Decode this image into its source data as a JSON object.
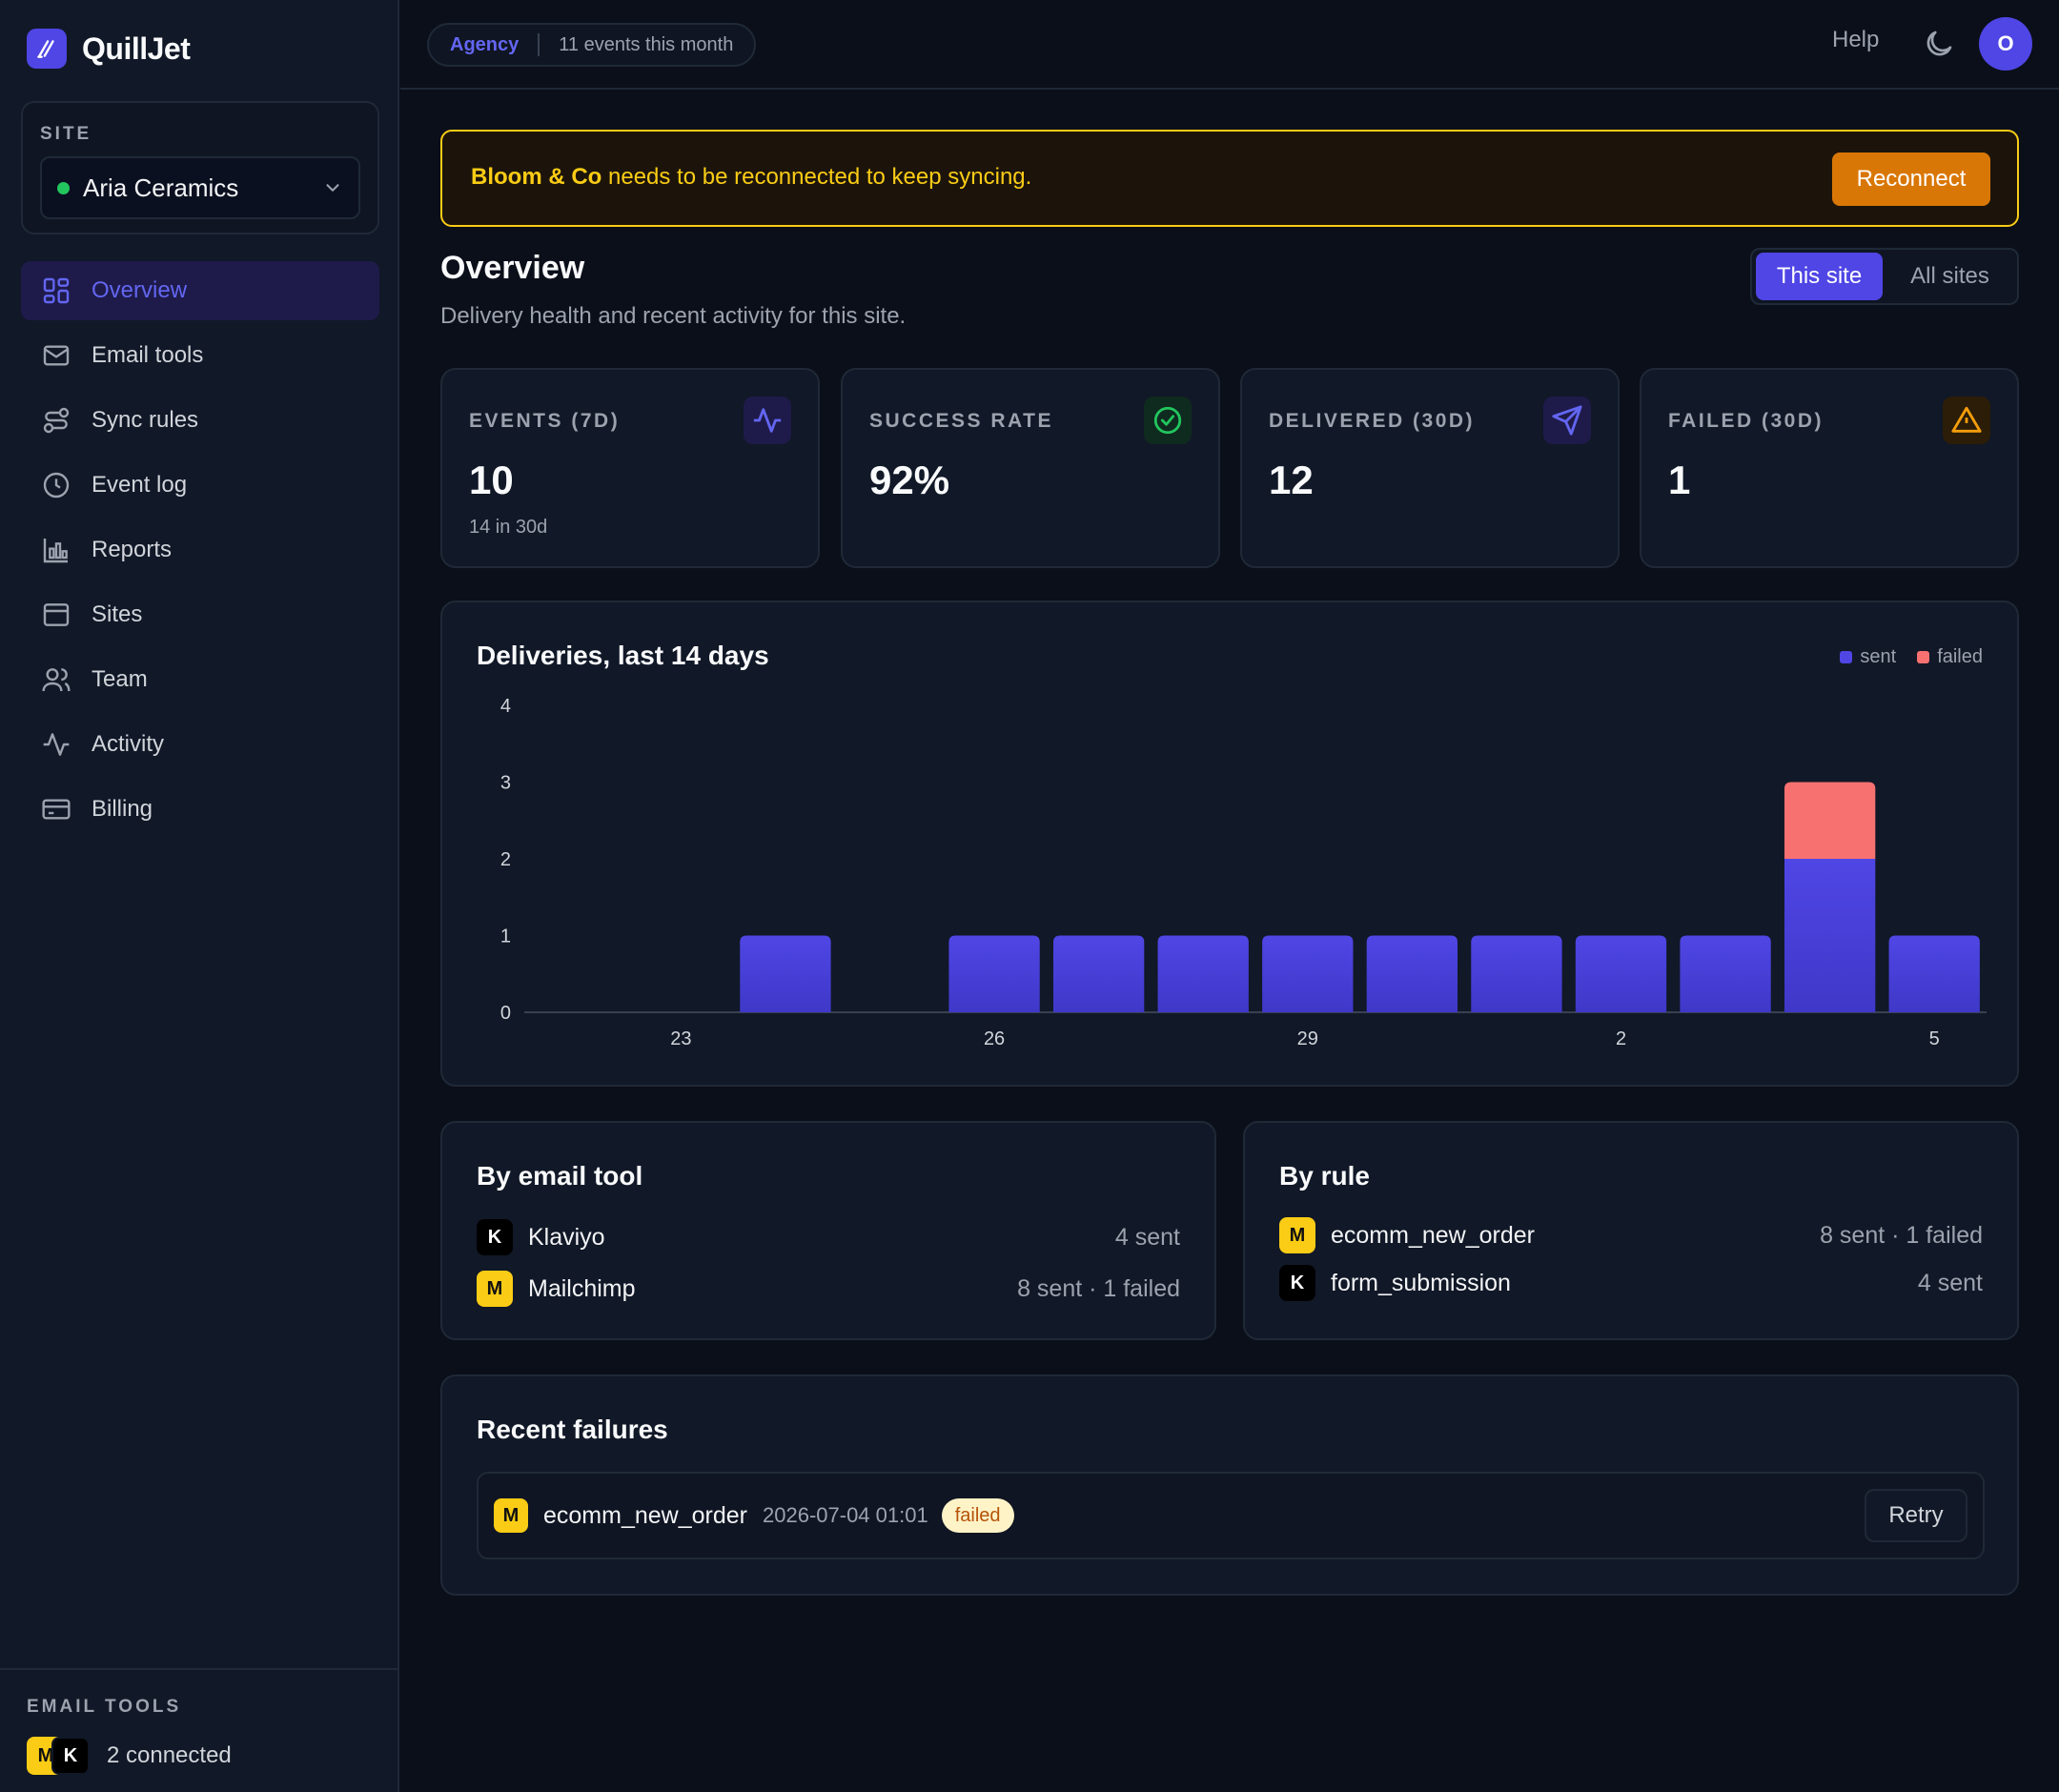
{
  "brand": {
    "name": "QuillJet"
  },
  "sidebar": {
    "site_label": "SITE",
    "site_name": "Aria Ceramics",
    "items": [
      {
        "label": "Overview",
        "icon": "grid-icon",
        "active": true
      },
      {
        "label": "Email tools",
        "icon": "mail-icon"
      },
      {
        "label": "Sync rules",
        "icon": "route-icon"
      },
      {
        "label": "Event log",
        "icon": "clock-icon"
      },
      {
        "label": "Reports",
        "icon": "bar-chart-icon"
      },
      {
        "label": "Sites",
        "icon": "browser-icon"
      },
      {
        "label": "Team",
        "icon": "users-icon"
      },
      {
        "label": "Activity",
        "icon": "pulse-icon"
      },
      {
        "label": "Billing",
        "icon": "credit-card-icon"
      }
    ],
    "footer": {
      "label": "EMAIL TOOLS",
      "badges": [
        "M",
        "K"
      ],
      "text": "2 connected"
    }
  },
  "topbar": {
    "plan": "Agency",
    "events": "11 events this month",
    "help": "Help",
    "avatar": "O"
  },
  "banner": {
    "account": "Bloom & Co",
    "message": " needs to be reconnected to keep syncing.",
    "button": "Reconnect"
  },
  "overview": {
    "title": "Overview",
    "subtitle": "Delivery health and recent activity for this site.",
    "toggle": {
      "on": "This site",
      "off": "All sites"
    }
  },
  "stats": [
    {
      "label": "EVENTS (7D)",
      "value": "10",
      "sub": "14 in 30d",
      "icon": "pulse-icon"
    },
    {
      "label": "SUCCESS RATE",
      "value": "92%",
      "sub": "",
      "icon": "check-circle-icon"
    },
    {
      "label": "DELIVERED (30D)",
      "value": "12",
      "sub": "",
      "icon": "send-icon"
    },
    {
      "label": "FAILED (30D)",
      "value": "1",
      "sub": "",
      "icon": "warning-icon"
    }
  ],
  "colors": {
    "sent": "#4f46e5",
    "failed": "#f87171",
    "accent": "#6366f1"
  },
  "chart_data": {
    "type": "bar",
    "title": "Deliveries, last 14 days",
    "stacked": true,
    "x_tick_labels": [
      "",
      "23",
      "",
      "",
      "26",
      "",
      "",
      "29",
      "",
      "",
      "2",
      "",
      "",
      "5"
    ],
    "series": [
      {
        "name": "sent",
        "values": [
          0,
          0,
          1,
          0,
          1,
          1,
          1,
          1,
          1,
          1,
          1,
          1,
          2,
          1
        ]
      },
      {
        "name": "failed",
        "values": [
          0,
          0,
          0,
          0,
          0,
          0,
          0,
          0,
          0,
          0,
          0,
          0,
          1,
          0
        ]
      }
    ],
    "y_ticks": [
      "0",
      "1",
      "2",
      "3",
      "4"
    ],
    "ylim": [
      0,
      4
    ],
    "legend": "top-right",
    "grid": false
  },
  "by_tool": {
    "title": "By email tool",
    "rows": [
      {
        "badge": "K",
        "name": "Klaviyo",
        "value": "4 sent"
      },
      {
        "badge": "M",
        "name": "Mailchimp",
        "value": "8 sent · 1 failed"
      }
    ]
  },
  "by_rule": {
    "title": "By rule",
    "rows": [
      {
        "badge": "M",
        "name": "ecomm_new_order",
        "value": "8 sent · 1 failed"
      },
      {
        "badge": "K",
        "name": "form_submission",
        "value": "4 sent"
      }
    ]
  },
  "failures": {
    "title": "Recent failures",
    "rows": [
      {
        "badge": "M",
        "name": "ecomm_new_order",
        "time": "2026-07-04 01:01",
        "status": "failed",
        "action": "Retry"
      }
    ]
  }
}
